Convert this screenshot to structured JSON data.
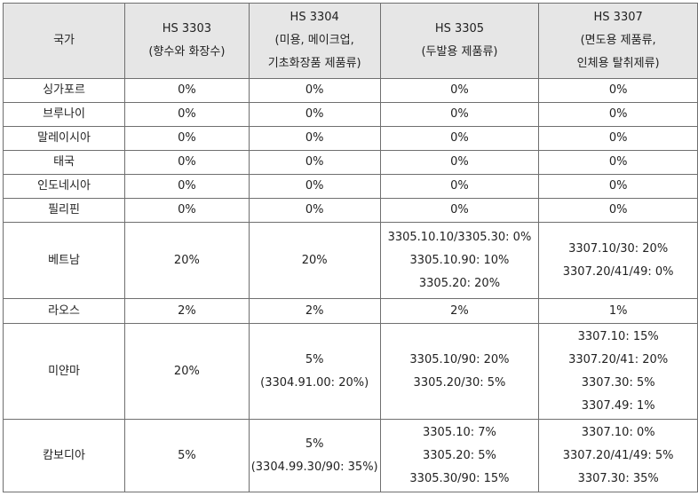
{
  "table": {
    "headers": [
      {
        "lines": [
          "국가"
        ]
      },
      {
        "lines": [
          "HS 3303",
          "(향수와 화장수)"
        ]
      },
      {
        "lines": [
          "HS 3304",
          "(미용, 메이크업,",
          "기초화장품 제품류)"
        ]
      },
      {
        "lines": [
          "HS 3305",
          "(두발용 제품류)"
        ]
      },
      {
        "lines": [
          "HS 3307",
          "(면도용 제품류,",
          "인체용 탈취제류)"
        ]
      }
    ],
    "rows": [
      {
        "country": "싱가포르",
        "hs3303": [
          "0%"
        ],
        "hs3304": [
          "0%"
        ],
        "hs3305": [
          "0%"
        ],
        "hs3307": [
          "0%"
        ]
      },
      {
        "country": "브루나이",
        "hs3303": [
          "0%"
        ],
        "hs3304": [
          "0%"
        ],
        "hs3305": [
          "0%"
        ],
        "hs3307": [
          "0%"
        ]
      },
      {
        "country": "말레이시아",
        "hs3303": [
          "0%"
        ],
        "hs3304": [
          "0%"
        ],
        "hs3305": [
          "0%"
        ],
        "hs3307": [
          "0%"
        ]
      },
      {
        "country": "태국",
        "hs3303": [
          "0%"
        ],
        "hs3304": [
          "0%"
        ],
        "hs3305": [
          "0%"
        ],
        "hs3307": [
          "0%"
        ]
      },
      {
        "country": "인도네시아",
        "hs3303": [
          "0%"
        ],
        "hs3304": [
          "0%"
        ],
        "hs3305": [
          "0%"
        ],
        "hs3307": [
          "0%"
        ]
      },
      {
        "country": "필리핀",
        "hs3303": [
          "0%"
        ],
        "hs3304": [
          "0%"
        ],
        "hs3305": [
          "0%"
        ],
        "hs3307": [
          "0%"
        ]
      },
      {
        "country": "베트남",
        "hs3303": [
          "20%"
        ],
        "hs3304": [
          "20%"
        ],
        "hs3305": [
          "3305.10.10/3305.30: 0%",
          "3305.10.90: 10%",
          "3305.20: 20%"
        ],
        "hs3307": [
          "3307.10/30: 20%",
          "3307.20/41/49: 0%"
        ]
      },
      {
        "country": "라오스",
        "hs3303": [
          "2%"
        ],
        "hs3304": [
          "2%"
        ],
        "hs3305": [
          "2%"
        ],
        "hs3307": [
          "1%"
        ]
      },
      {
        "country": "미얀마",
        "hs3303": [
          "20%"
        ],
        "hs3304": [
          "5%",
          "(3304.91.00: 20%)"
        ],
        "hs3305": [
          "3305.10/90: 20%",
          "3305.20/30: 5%"
        ],
        "hs3307": [
          "3307.10: 15%",
          "3307.20/41: 20%",
          "3307.30: 5%",
          "3307.49: 1%"
        ]
      },
      {
        "country": "캄보디아",
        "hs3303": [
          "5%"
        ],
        "hs3304": [
          "5%",
          "(3304.99.30/90: 35%)"
        ],
        "hs3305": [
          "3305.10: 7%",
          "3305.20: 5%",
          "3305.30/90: 15%"
        ],
        "hs3307": [
          "3307.10: 0%",
          "3307.20/41/49: 5%",
          "3307.30: 35%"
        ]
      }
    ]
  }
}
